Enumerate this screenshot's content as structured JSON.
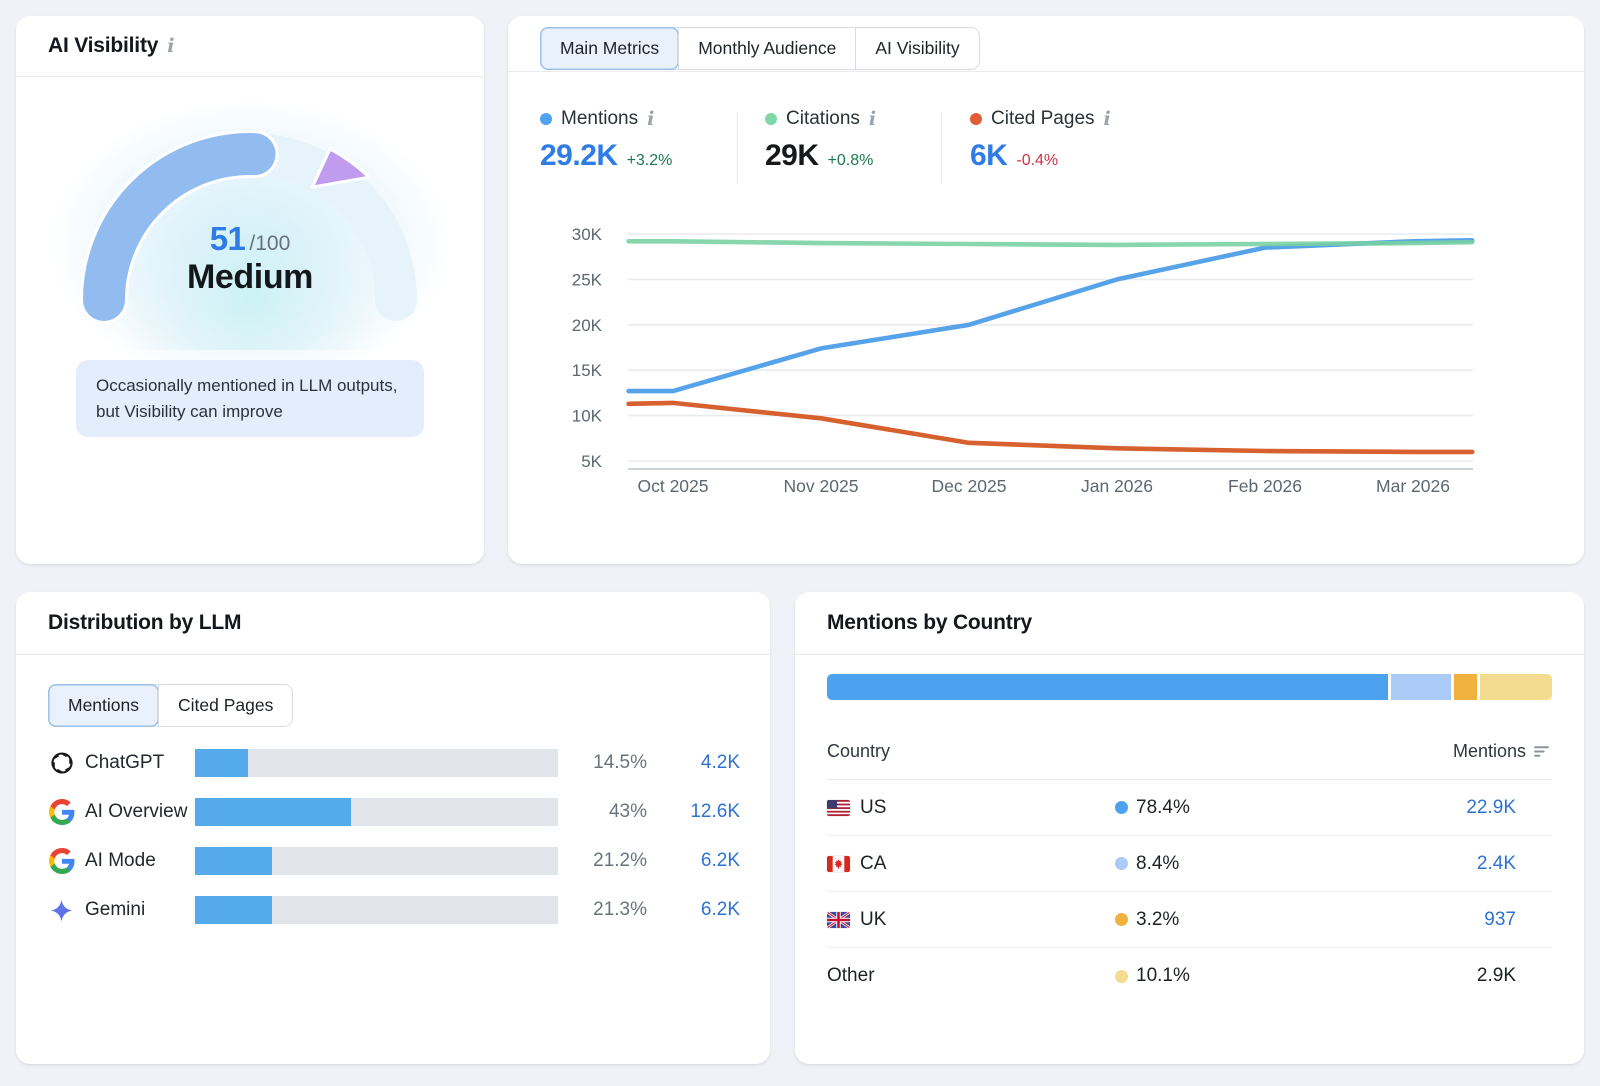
{
  "icons": {
    "info": "i"
  },
  "ai_visibility_card": {
    "title": "AI Visibility",
    "score": "51",
    "score_suffix": "/100",
    "rating": "Medium",
    "note": "Occasionally mentioned in LLM outputs, but Visibility can improve",
    "gauge": {
      "score_pct": 51,
      "marker_pct": 70,
      "arc_color": "#92bbf0",
      "track_color": "#e7f3fa",
      "marker_color": "#c19cee",
      "glow_color": "#c9f2f4"
    }
  },
  "trend_card": {
    "tabs": [
      {
        "label": "Main Metrics",
        "active": true
      },
      {
        "label": "Monthly Audience",
        "active": false
      },
      {
        "label": "AI Visibility",
        "active": false
      }
    ],
    "metrics": [
      {
        "label": "Mentions",
        "value": "29.2K",
        "change": "+3.2%",
        "dot_color": "#4da3ef",
        "value_color": "#2f7ce4",
        "change_color": "#1d7a50"
      },
      {
        "label": "Citations",
        "value": "29K",
        "change": "+0.8%",
        "dot_color": "#7fd8a6",
        "value_color": "#17191d",
        "change_color": "#1d7a50"
      },
      {
        "label": "Cited Pages",
        "value": "6K",
        "change": "-0.4%",
        "dot_color": "#e25c35",
        "value_color": "#2f7ce4",
        "change_color": "#cc3344"
      }
    ]
  },
  "chart_data": {
    "type": "line",
    "x_ticks": [
      "Oct 2025",
      "Nov 2025",
      "Dec 2025",
      "Jan 2026",
      "Feb 2026",
      "Mar 2026"
    ],
    "y_tick_labels": [
      "30K",
      "25K",
      "20K",
      "15K",
      "10K",
      "5K"
    ],
    "y_tick_values": [
      30,
      25,
      20,
      15,
      10,
      5
    ],
    "ylim_k": [
      3.5,
      31
    ],
    "grid": true,
    "x_positions": [
      -0.3,
      0,
      1,
      2,
      3,
      4,
      5,
      5.4
    ],
    "series": [
      {
        "name": "Cited Pages",
        "color": "#d6602e",
        "values": [
          11.3,
          11.4,
          9.7,
          7.0,
          6.4,
          6.1,
          6.0,
          6.0
        ]
      },
      {
        "name": "Mentions",
        "color": "#57a3e9",
        "values": [
          12.7,
          12.7,
          17.4,
          20.0,
          25.0,
          28.5,
          29.2,
          29.3
        ]
      },
      {
        "name": "Citations",
        "color": "#76d0a0",
        "values": [
          29.2,
          29.2,
          29.0,
          28.9,
          28.8,
          28.9,
          29.0,
          29.1
        ]
      }
    ]
  },
  "llm_card": {
    "title": "Distribution by LLM",
    "tabs": [
      {
        "label": "Mentions",
        "active": true
      },
      {
        "label": "Cited Pages",
        "active": false
      }
    ],
    "bar_fill_color": "#55aaec",
    "bar_track_color": "#e1e4e9",
    "rows": [
      {
        "name": "ChatGPT",
        "icon": "chatgpt-icon",
        "percent": "14.5%",
        "value": "4.2K",
        "fill_width": "14.5%"
      },
      {
        "name": "AI Overview",
        "icon": "google-icon",
        "percent": "43%",
        "value": "12.6K",
        "fill_width": "43%"
      },
      {
        "name": "AI Mode",
        "icon": "google-icon",
        "percent": "21.2%",
        "value": "6.2K",
        "fill_width": "21.2%"
      },
      {
        "name": "Gemini",
        "icon": "gemini-icon",
        "percent": "21.3%",
        "value": "6.2K",
        "fill_width": "21.3%"
      }
    ]
  },
  "country_card": {
    "title": "Mentions by Country",
    "columns": {
      "country": "Country",
      "mentions": "Mentions"
    },
    "segments": [
      {
        "label": "US",
        "width": "78.4%",
        "color": "#4da2ef"
      },
      {
        "label": "CA",
        "width": "8.4%",
        "color": "#a9cbf6"
      },
      {
        "label": "UK",
        "width": "3.2%",
        "color": "#f0b13f"
      },
      {
        "label": "Other",
        "width": "10.1%",
        "color": "#f3dc8f"
      }
    ],
    "rows": [
      {
        "code": "US",
        "percent": "78.4%",
        "value": "22.9K",
        "dot_color": "#4da2ef"
      },
      {
        "code": "CA",
        "percent": "8.4%",
        "value": "2.4K",
        "dot_color": "#a9cbf6"
      },
      {
        "code": "UK",
        "percent": "3.2%",
        "value": "937",
        "dot_color": "#f0b13f"
      },
      {
        "code": "Other",
        "percent": "10.1%",
        "value": "2.9K",
        "dot_color": "#f3dc8f"
      }
    ]
  }
}
